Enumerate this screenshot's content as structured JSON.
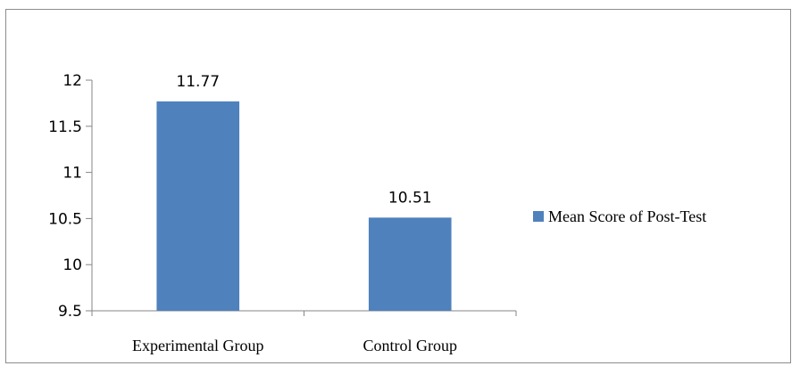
{
  "chart_data": {
    "type": "bar",
    "categories": [
      "Experimental Group",
      "Control Group"
    ],
    "series": [
      {
        "name": "Mean Score of Post-Test",
        "values": [
          11.77,
          10.51
        ],
        "color": "#4f81bd"
      }
    ],
    "data_labels": [
      "11.77",
      "10.51"
    ],
    "y_ticks": [
      "9.5",
      "10",
      "10.5",
      "11",
      "11.5",
      "12"
    ],
    "ylim": [
      9.5,
      12
    ],
    "grid": false,
    "legend_position": "right",
    "title": "",
    "xlabel": "",
    "ylabel": ""
  }
}
